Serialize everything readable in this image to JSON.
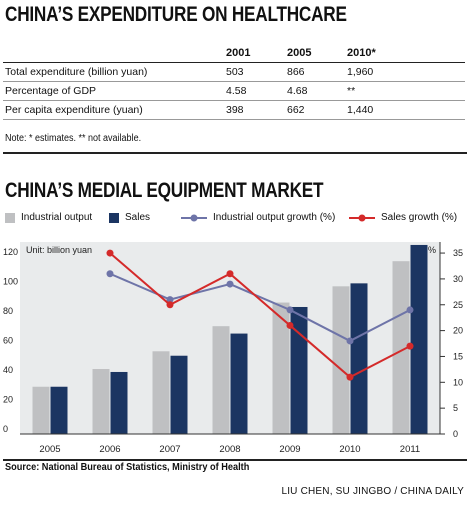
{
  "table_section": {
    "title": "CHINA’S EXPENDITURE ON HEALTHCARE",
    "headers": [
      "",
      "2001",
      "2005",
      "2010*"
    ],
    "rows": [
      [
        "Total expenditure (billion yuan)",
        "503",
        "866",
        "1,960"
      ],
      [
        "Percentage of GDP",
        "4.58",
        "4.68",
        "**"
      ],
      [
        "Per capita expenditure (yuan)",
        "398",
        "662",
        "1,440"
      ]
    ],
    "note": "Note: * estimates. ** not available."
  },
  "chart_section": {
    "title": "CHINA’S MEDIAL EQUIPMENT MARKET"
  },
  "legend": {
    "industrial_output": "Industrial output",
    "sales": "Sales",
    "industrial_output_growth": "Industrial output growth (%)",
    "sales_growth": "Sales growth (%)"
  },
  "colors": {
    "industrial_output": "#bfc0c2",
    "sales": "#1b3562",
    "industrial_output_growth": "#6e74a8",
    "sales_growth": "#d42a2a",
    "plot_bg": "#e9ebec"
  },
  "chart_data": {
    "type": "bar",
    "categories": [
      "2005",
      "2006",
      "2007",
      "2008",
      "2009",
      "2010",
      "2011"
    ],
    "series": [
      {
        "name": "Industrial output",
        "values": [
          32,
          44,
          56,
          73,
          89,
          100,
          117
        ],
        "axis": "left"
      },
      {
        "name": "Sales",
        "values": [
          32,
          42,
          53,
          68,
          86,
          102,
          128
        ],
        "axis": "left"
      }
    ],
    "line_series": [
      {
        "name": "Industrial output growth (%)",
        "x": [
          "2006",
          "2007",
          "2008",
          "2009",
          "2010",
          "2011"
        ],
        "values": [
          31,
          26,
          29,
          24,
          18,
          24
        ],
        "axis": "right"
      },
      {
        "name": "Sales growth (%)",
        "x": [
          "2006",
          "2007",
          "2008",
          "2009",
          "2010",
          "2011"
        ],
        "values": [
          35,
          25,
          31,
          21,
          11,
          17
        ],
        "axis": "right"
      }
    ],
    "left_axis": {
      "label": "Unit: billion yuan",
      "ticks": [
        "0",
        "20",
        "40",
        "60",
        "80",
        "100",
        "120"
      ],
      "min": 0,
      "max": 130
    },
    "right_axis": {
      "label": "%",
      "ticks": [
        "0",
        "5",
        "10",
        "15",
        "20",
        "25",
        "30",
        "35"
      ],
      "min": 0,
      "max": 37.14
    },
    "grid": false
  },
  "source": "Source: National Bureau of Statistics, Ministry of Health",
  "credit": "LIU CHEN, SU JINGBO / CHINA DAILY"
}
